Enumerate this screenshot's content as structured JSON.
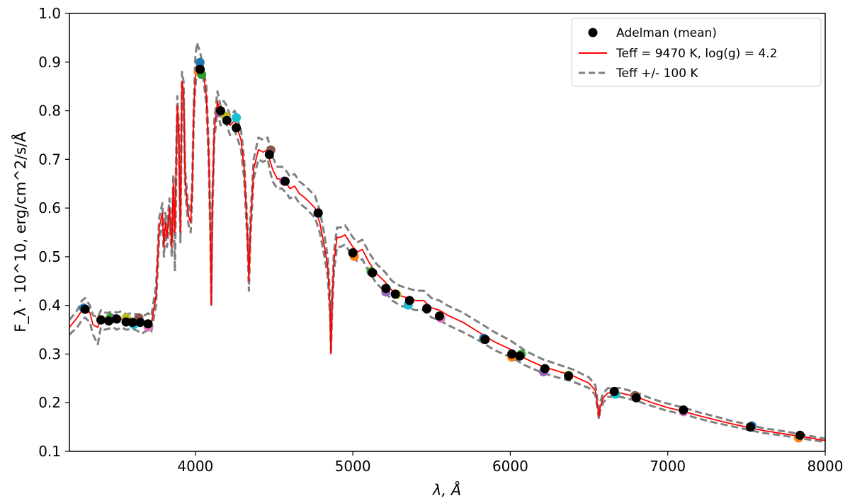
{
  "chart_data": {
    "type": "line",
    "xlabel": "λ, Å",
    "ylabel": "F_λ · 10^10, erg/cm^2/s/Å",
    "xlim": [
      3200,
      8000
    ],
    "ylim": [
      0.1,
      1.0
    ],
    "x_ticks": [
      4000,
      5000,
      6000,
      7000,
      8000
    ],
    "y_ticks": [
      0.1,
      0.2,
      0.3,
      0.4,
      0.5,
      0.6,
      0.7,
      0.8,
      0.9,
      1.0
    ],
    "x_tick_labels": [
      "4000",
      "5000",
      "6000",
      "7000",
      "8000"
    ],
    "y_tick_labels": [
      "0.1",
      "0.2",
      "0.3",
      "0.4",
      "0.5",
      "0.6",
      "0.7",
      "0.8",
      "0.9",
      "1.0"
    ],
    "grid": false,
    "legend_position": "top-right",
    "legend": [
      {
        "label": "Adelman (mean)",
        "style": "marker",
        "color": "#000000"
      },
      {
        "label": "Teff = 9470 K, log(g) = 4.2",
        "style": "solid",
        "color": "#ff0000"
      },
      {
        "label": "Teff +/- 100 K",
        "style": "dashed",
        "color": "#808080"
      }
    ],
    "series": [
      {
        "name": "Teff = 9470 K, log(g) = 4.2",
        "color": "#ff0000",
        "style": "solid",
        "x": [
          3200,
          3250,
          3280,
          3300,
          3330,
          3350,
          3380,
          3400,
          3420,
          3450,
          3480,
          3500,
          3530,
          3560,
          3600,
          3630,
          3660,
          3700,
          3720,
          3750,
          3770,
          3790,
          3800,
          3810,
          3820,
          3835,
          3850,
          3860,
          3870,
          3885,
          3895,
          3905,
          3915,
          3925,
          3935,
          3950,
          3960,
          3970,
          3980,
          3990,
          4000,
          4010,
          4030,
          4050,
          4070,
          4085,
          4095,
          4101,
          4108,
          4120,
          4140,
          4160,
          4180,
          4200,
          4220,
          4250,
          4270,
          4290,
          4310,
          4330,
          4340,
          4350,
          4370,
          4400,
          4430,
          4460,
          4471,
          4490,
          4520,
          4550,
          4580,
          4600,
          4630,
          4660,
          4700,
          4730,
          4760,
          4790,
          4820,
          4840,
          4855,
          4861,
          4868,
          4880,
          4900,
          4920,
          4950,
          5000,
          5030,
          5060,
          5100,
          5150,
          5200,
          5250,
          5300,
          5350,
          5400,
          5450,
          5500,
          5550,
          5600,
          5700,
          5800,
          5850,
          5900,
          6000,
          6100,
          6200,
          6300,
          6400,
          6500,
          6540,
          6556,
          6563,
          6570,
          6590,
          6620,
          6700,
          6800,
          6900,
          7000,
          7100,
          7200,
          7300,
          7400,
          7500,
          7600,
          7700,
          7800,
          7900,
          8000
        ],
        "y": [
          0.355,
          0.375,
          0.39,
          0.395,
          0.385,
          0.36,
          0.355,
          0.372,
          0.368,
          0.37,
          0.372,
          0.368,
          0.372,
          0.366,
          0.368,
          0.365,
          0.36,
          0.368,
          0.362,
          0.42,
          0.56,
          0.59,
          0.52,
          0.57,
          0.54,
          0.6,
          0.52,
          0.65,
          0.55,
          0.81,
          0.75,
          0.55,
          0.86,
          0.84,
          0.66,
          0.6,
          0.58,
          0.57,
          0.64,
          0.8,
          0.87,
          0.9,
          0.9,
          0.88,
          0.83,
          0.71,
          0.55,
          0.4,
          0.6,
          0.76,
          0.82,
          0.79,
          0.8,
          0.79,
          0.77,
          0.78,
          0.76,
          0.74,
          0.68,
          0.55,
          0.45,
          0.56,
          0.68,
          0.72,
          0.715,
          0.72,
          0.7,
          0.68,
          0.66,
          0.66,
          0.65,
          0.64,
          0.645,
          0.63,
          0.62,
          0.61,
          0.6,
          0.57,
          0.52,
          0.48,
          0.4,
          0.3,
          0.4,
          0.49,
          0.54,
          0.54,
          0.545,
          0.52,
          0.51,
          0.515,
          0.49,
          0.465,
          0.45,
          0.43,
          0.42,
          0.415,
          0.41,
          0.41,
          0.395,
          0.39,
          0.38,
          0.365,
          0.345,
          0.335,
          0.325,
          0.31,
          0.29,
          0.275,
          0.265,
          0.255,
          0.24,
          0.225,
          0.19,
          0.17,
          0.19,
          0.21,
          0.22,
          0.22,
          0.212,
          0.2,
          0.19,
          0.182,
          0.173,
          0.165,
          0.157,
          0.15,
          0.143,
          0.138,
          0.133,
          0.128,
          0.122
        ]
      },
      {
        "name": "Teff +/- 100 K (upper)",
        "color": "#808080",
        "style": "dashed",
        "x": [
          3200,
          3250,
          3280,
          3300,
          3330,
          3350,
          3380,
          3400,
          3420,
          3450,
          3480,
          3500,
          3530,
          3560,
          3600,
          3630,
          3660,
          3700,
          3720,
          3750,
          3770,
          3790,
          3800,
          3810,
          3820,
          3835,
          3850,
          3860,
          3870,
          3885,
          3895,
          3905,
          3915,
          3925,
          3935,
          3950,
          3960,
          3970,
          3980,
          3990,
          4000,
          4010,
          4030,
          4050,
          4070,
          4085,
          4095,
          4101,
          4108,
          4120,
          4140,
          4160,
          4180,
          4200,
          4220,
          4250,
          4270,
          4290,
          4310,
          4330,
          4340,
          4350,
          4370,
          4400,
          4430,
          4460,
          4471,
          4490,
          4520,
          4550,
          4580,
          4600,
          4630,
          4660,
          4700,
          4730,
          4760,
          4790,
          4820,
          4840,
          4855,
          4861,
          4868,
          4880,
          4900,
          4920,
          4950,
          5000,
          5030,
          5060,
          5100,
          5150,
          5200,
          5250,
          5300,
          5350,
          5400,
          5450,
          5500,
          5550,
          5600,
          5700,
          5800,
          5850,
          5900,
          6000,
          6100,
          6200,
          6300,
          6400,
          6500,
          6540,
          6556,
          6563,
          6570,
          6590,
          6620,
          6700,
          6800,
          6900,
          7000,
          7100,
          7200,
          7300,
          7400,
          7500,
          7600,
          7700,
          7800,
          7900,
          8000
        ],
        "y": [
          0.37,
          0.39,
          0.41,
          0.415,
          0.4,
          0.38,
          0.375,
          0.39,
          0.385,
          0.385,
          0.388,
          0.385,
          0.388,
          0.382,
          0.384,
          0.381,
          0.376,
          0.384,
          0.378,
          0.44,
          0.58,
          0.61,
          0.54,
          0.59,
          0.56,
          0.62,
          0.54,
          0.67,
          0.57,
          0.83,
          0.77,
          0.57,
          0.88,
          0.86,
          0.68,
          0.62,
          0.6,
          0.59,
          0.66,
          0.82,
          0.91,
          0.94,
          0.92,
          0.89,
          0.85,
          0.73,
          0.57,
          0.42,
          0.62,
          0.78,
          0.84,
          0.81,
          0.82,
          0.81,
          0.79,
          0.8,
          0.78,
          0.76,
          0.7,
          0.57,
          0.47,
          0.58,
          0.7,
          0.745,
          0.74,
          0.745,
          0.725,
          0.705,
          0.685,
          0.685,
          0.675,
          0.665,
          0.67,
          0.655,
          0.645,
          0.635,
          0.625,
          0.595,
          0.545,
          0.5,
          0.42,
          0.32,
          0.42,
          0.51,
          0.56,
          0.56,
          0.565,
          0.54,
          0.53,
          0.535,
          0.51,
          0.485,
          0.47,
          0.45,
          0.44,
          0.435,
          0.43,
          0.43,
          0.415,
          0.41,
          0.4,
          0.385,
          0.365,
          0.355,
          0.345,
          0.328,
          0.306,
          0.29,
          0.279,
          0.268,
          0.252,
          0.236,
          0.2,
          0.178,
          0.2,
          0.22,
          0.23,
          0.23,
          0.221,
          0.208,
          0.198,
          0.19,
          0.18,
          0.172,
          0.163,
          0.156,
          0.148,
          0.143,
          0.138,
          0.132,
          0.126
        ]
      },
      {
        "name": "Teff +/- 100 K (lower)",
        "color": "#808080",
        "style": "dashed",
        "x": [
          3200,
          3250,
          3280,
          3300,
          3330,
          3350,
          3380,
          3400,
          3420,
          3450,
          3480,
          3500,
          3530,
          3560,
          3600,
          3630,
          3660,
          3700,
          3720,
          3750,
          3770,
          3790,
          3800,
          3810,
          3820,
          3835,
          3850,
          3860,
          3870,
          3885,
          3895,
          3905,
          3915,
          3925,
          3935,
          3950,
          3960,
          3970,
          3980,
          3990,
          4000,
          4010,
          4030,
          4050,
          4070,
          4085,
          4095,
          4101,
          4108,
          4120,
          4140,
          4160,
          4180,
          4200,
          4220,
          4250,
          4270,
          4290,
          4310,
          4330,
          4340,
          4350,
          4370,
          4400,
          4430,
          4460,
          4471,
          4490,
          4520,
          4550,
          4580,
          4600,
          4630,
          4660,
          4700,
          4730,
          4760,
          4790,
          4820,
          4840,
          4855,
          4861,
          4868,
          4880,
          4900,
          4920,
          4950,
          5000,
          5030,
          5060,
          5100,
          5150,
          5200,
          5250,
          5300,
          5350,
          5400,
          5450,
          5500,
          5550,
          5600,
          5700,
          5800,
          5850,
          5900,
          6000,
          6100,
          6200,
          6300,
          6400,
          6500,
          6540,
          6556,
          6563,
          6570,
          6590,
          6620,
          6700,
          6800,
          6900,
          7000,
          7100,
          7200,
          7300,
          7400,
          7500,
          7600,
          7700,
          7800,
          7900,
          8000
        ],
        "y": [
          0.34,
          0.355,
          0.37,
          0.375,
          0.365,
          0.34,
          0.32,
          0.355,
          0.35,
          0.352,
          0.355,
          0.35,
          0.355,
          0.35,
          0.352,
          0.348,
          0.342,
          0.35,
          0.346,
          0.4,
          0.54,
          0.57,
          0.5,
          0.55,
          0.52,
          0.58,
          0.5,
          0.63,
          0.47,
          0.79,
          0.73,
          0.53,
          0.84,
          0.82,
          0.64,
          0.58,
          0.56,
          0.55,
          0.62,
          0.78,
          0.85,
          0.88,
          0.88,
          0.87,
          0.81,
          0.69,
          0.53,
          0.4,
          0.58,
          0.74,
          0.8,
          0.77,
          0.78,
          0.77,
          0.75,
          0.76,
          0.74,
          0.72,
          0.66,
          0.53,
          0.43,
          0.54,
          0.66,
          0.7,
          0.695,
          0.7,
          0.68,
          0.655,
          0.64,
          0.64,
          0.63,
          0.62,
          0.625,
          0.61,
          0.6,
          0.59,
          0.58,
          0.55,
          0.5,
          0.46,
          0.38,
          0.3,
          0.38,
          0.47,
          0.52,
          0.52,
          0.525,
          0.5,
          0.49,
          0.495,
          0.47,
          0.445,
          0.43,
          0.41,
          0.4,
          0.395,
          0.39,
          0.39,
          0.375,
          0.37,
          0.36,
          0.345,
          0.328,
          0.318,
          0.308,
          0.294,
          0.276,
          0.262,
          0.252,
          0.243,
          0.23,
          0.216,
          0.182,
          0.166,
          0.182,
          0.2,
          0.212,
          0.212,
          0.204,
          0.193,
          0.183,
          0.176,
          0.167,
          0.159,
          0.152,
          0.145,
          0.138,
          0.134,
          0.129,
          0.124,
          0.119
        ]
      }
    ],
    "points_colored": {
      "style": "scatter",
      "colors": [
        "#1f77b4",
        "#ff7f0e",
        "#2ca02c",
        "#9467bd",
        "#bcbd22",
        "#17becf",
        "#8c564b",
        "#e377c2"
      ],
      "x": [
        3300,
        3400,
        3450,
        3500,
        3560,
        3600,
        3650,
        3700,
        4020,
        4030,
        4040,
        4150,
        4200,
        4260,
        4470,
        4570,
        4780,
        5000,
        5125,
        5210,
        5270,
        5360,
        5470,
        5550,
        5840,
        6010,
        6060,
        6220,
        6370,
        6660,
        6800,
        7100,
        7525,
        7840
      ],
      "y": [
        0.39,
        0.375,
        0.37,
        0.377,
        0.37,
        0.365,
        0.37,
        0.36,
        0.895,
        0.885,
        0.87,
        0.8,
        0.785,
        0.79,
        0.715,
        0.66,
        0.585,
        0.505,
        0.465,
        0.432,
        0.418,
        0.405,
        0.39,
        0.378,
        0.328,
        0.298,
        0.295,
        0.268,
        0.252,
        0.222,
        0.21,
        0.186,
        0.148,
        0.132
      ]
    },
    "points_mean": {
      "name": "Adelman (mean)",
      "color": "#000000",
      "style": "scatter",
      "x": [
        3300,
        3400,
        3450,
        3500,
        3560,
        3600,
        3650,
        3700,
        4030,
        4160,
        4200,
        4260,
        4470,
        4570,
        4780,
        5000,
        5125,
        5210,
        5270,
        5360,
        5470,
        5550,
        5840,
        6010,
        6060,
        6220,
        6370,
        6660,
        6800,
        7100,
        7525,
        7840
      ],
      "y": [
        0.392,
        0.37,
        0.368,
        0.372,
        0.366,
        0.365,
        0.365,
        0.362,
        0.885,
        0.8,
        0.78,
        0.765,
        0.71,
        0.655,
        0.59,
        0.508,
        0.467,
        0.435,
        0.423,
        0.41,
        0.393,
        0.378,
        0.33,
        0.3,
        0.296,
        0.27,
        0.255,
        0.223,
        0.21,
        0.185,
        0.15,
        0.133
      ]
    }
  }
}
